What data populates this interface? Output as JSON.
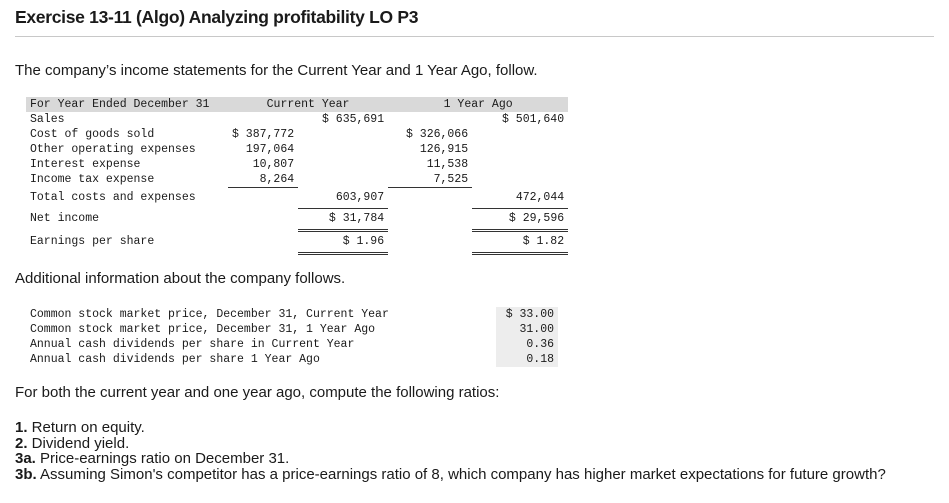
{
  "title": "Exercise 13-11 (Algo) Analyzing profitability LO P3",
  "intro": "The company’s income statements for the Current Year and 1 Year Ago, follow.",
  "income_statement": {
    "header": {
      "label": "For Year Ended December 31",
      "current": "Current Year",
      "prior": "1 Year Ago"
    },
    "sales": {
      "label": "Sales",
      "current": "$ 635,691",
      "prior": "$ 501,640"
    },
    "cogs": {
      "label": "Cost of goods sold",
      "current": "$ 387,772",
      "prior": "$ 326,066"
    },
    "other_opex": {
      "label": "Other operating expenses",
      "current": "197,064",
      "prior": "126,915"
    },
    "interest": {
      "label": "Interest expense",
      "current": "10,807",
      "prior": "11,538"
    },
    "tax": {
      "label": "Income tax expense",
      "current": "8,264",
      "prior": "7,525"
    },
    "total_costs": {
      "label": "Total costs and expenses",
      "current": "603,907",
      "prior": "472,044"
    },
    "net_income": {
      "label": "Net income",
      "current": "$ 31,784",
      "prior": "$ 29,596"
    },
    "eps": {
      "label": "Earnings per share",
      "current": "$ 1.96",
      "prior": "$ 1.82"
    }
  },
  "additional_heading": "Additional information about the company follows.",
  "additional": [
    {
      "label": "Common stock market price, December 31, Current Year",
      "value": "$ 33.00"
    },
    {
      "label": "Common stock market price, December 31, 1 Year Ago",
      "value": "31.00"
    },
    {
      "label": "Annual cash dividends per share in Current Year",
      "value": "0.36"
    },
    {
      "label": "Annual cash dividends per share 1 Year Ago",
      "value": "0.18"
    }
  ],
  "compute_text": "For both the current year and one year ago, compute the following ratios:",
  "ratios": [
    {
      "num": "1.",
      "text": " Return on equity."
    },
    {
      "num": "2.",
      "text": " Dividend yield."
    },
    {
      "num": "3a.",
      "text": " Price-earnings ratio on December 31."
    },
    {
      "num": "3b.",
      "text": " Assuming Simon's competitor has a price-earnings ratio of 8, which company has higher market expectations for future growth?"
    }
  ]
}
